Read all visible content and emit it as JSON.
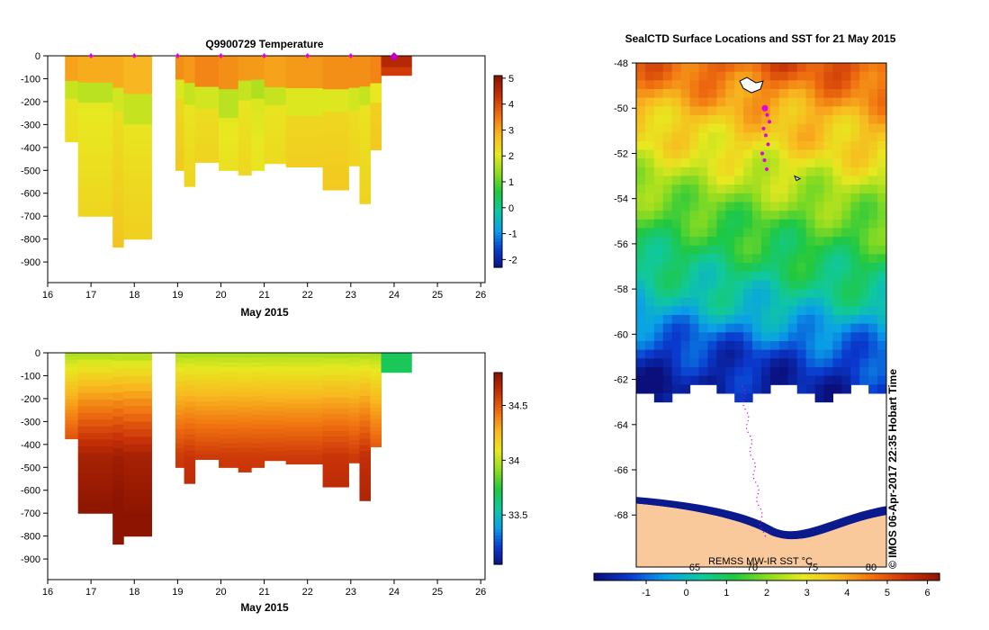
{
  "chart_data": [
    {
      "type": "heatmap",
      "title": "Q9900729  Temperature",
      "xlabel": "May 2015",
      "ylabel": "",
      "xlim": [
        16,
        26.1
      ],
      "ylim": [
        -990,
        0
      ],
      "xticks": [
        "16",
        "17",
        "18",
        "19",
        "20",
        "21",
        "22",
        "23",
        "24",
        "25",
        "26"
      ],
      "yticks": [
        "0",
        "-100",
        "-200",
        "-300",
        "-400",
        "-500",
        "-600",
        "-700",
        "-800",
        "-900"
      ],
      "colorbar": {
        "min": -2.3,
        "max": 5.1,
        "ticks": [
          "5",
          "4",
          "3",
          "2",
          "1",
          "0",
          "-1",
          "-2"
        ],
        "colors": [
          "#0a0f7c",
          "#0a3cd0",
          "#0aa0e8",
          "#10c8a0",
          "#20c840",
          "#90dc20",
          "#e8e820",
          "#f8b820",
          "#f07010",
          "#c83208",
          "#8c1400"
        ]
      },
      "profile_markers": [
        17.0,
        18.0,
        19.0,
        20.0,
        21.0,
        22.0,
        23.0
      ],
      "last_marker": 24.0,
      "profiles": [
        {
          "x0": 16.4,
          "x1": 16.7,
          "depth": 375,
          "surface": 3.1,
          "deep": 2.2,
          "thermo": 130
        },
        {
          "x0": 16.7,
          "x1": 17.5,
          "depth": 700,
          "surface": 3.0,
          "deep": 2.1,
          "thermo": 140
        },
        {
          "x0": 17.5,
          "x1": 17.75,
          "depth": 835,
          "surface": 3.0,
          "deep": 2.3,
          "thermo": 170
        },
        {
          "x0": 17.75,
          "x1": 18.4,
          "depth": 800,
          "surface": 2.9,
          "deep": 2.2,
          "thermo": 210
        },
        {
          "x0": 18.95,
          "x1": 19.15,
          "depth": 500,
          "surface": 3.3,
          "deep": 2.4,
          "thermo": 120
        },
        {
          "x0": 19.15,
          "x1": 19.4,
          "depth": 570,
          "surface": 3.2,
          "deep": 2.2,
          "thermo": 150
        },
        {
          "x0": 19.4,
          "x1": 19.95,
          "depth": 465,
          "surface": 3.4,
          "deep": 2.3,
          "thermo": 150
        },
        {
          "x0": 19.95,
          "x1": 20.4,
          "depth": 500,
          "surface": 3.3,
          "deep": 2.1,
          "thermo": 180
        },
        {
          "x0": 20.4,
          "x1": 20.7,
          "depth": 520,
          "surface": 3.2,
          "deep": 2.2,
          "thermo": 130
        },
        {
          "x0": 20.7,
          "x1": 21.0,
          "depth": 500,
          "surface": 3.2,
          "deep": 2.0,
          "thermo": 120
        },
        {
          "x0": 21.0,
          "x1": 21.5,
          "depth": 470,
          "surface": 3.1,
          "deep": 2.2,
          "thermo": 150
        },
        {
          "x0": 21.5,
          "x1": 22.35,
          "depth": 485,
          "surface": 3.2,
          "deep": 2.4,
          "thermo": 170
        },
        {
          "x0": 22.35,
          "x1": 22.95,
          "depth": 585,
          "surface": 3.3,
          "deep": 2.4,
          "thermo": 160
        },
        {
          "x0": 22.95,
          "x1": 23.2,
          "depth": 480,
          "surface": 3.3,
          "deep": 2.3,
          "thermo": 160
        },
        {
          "x0": 23.2,
          "x1": 23.45,
          "depth": 645,
          "surface": 3.3,
          "deep": 2.2,
          "thermo": 150
        },
        {
          "x0": 23.45,
          "x1": 23.7,
          "depth": 410,
          "surface": 3.4,
          "deep": 2.5,
          "thermo": 140
        },
        {
          "x0": 23.7,
          "x1": 24.4,
          "depth": 85,
          "surface": 4.6,
          "deep": 4.6,
          "thermo": 60
        }
      ]
    },
    {
      "type": "heatmap",
      "title": "",
      "xlabel": "May 2015",
      "ylabel": "",
      "xlim": [
        16,
        26.1
      ],
      "ylim": [
        -990,
        0
      ],
      "xticks": [
        "16",
        "17",
        "18",
        "19",
        "20",
        "21",
        "22",
        "23",
        "24",
        "25",
        "26"
      ],
      "yticks": [
        "0",
        "-100",
        "-200",
        "-300",
        "-400",
        "-500",
        "-600",
        "-700",
        "-800",
        "-900"
      ],
      "colorbar": {
        "min": 33.05,
        "max": 34.8,
        "ticks": [
          "34.5",
          "34",
          "33.5"
        ],
        "colors": [
          "#0a0f7c",
          "#0a3cd0",
          "#0aa0e8",
          "#10c8a0",
          "#20c840",
          "#90dc20",
          "#e8e820",
          "#f8b820",
          "#f07010",
          "#c83208",
          "#8c1400"
        ]
      },
      "profiles": [
        {
          "x0": 16.4,
          "x1": 16.7,
          "depth": 375,
          "surface": 33.95,
          "deep": 34.62
        },
        {
          "x0": 16.7,
          "x1": 17.5,
          "depth": 700,
          "surface": 33.95,
          "deep": 34.72
        },
        {
          "x0": 17.5,
          "x1": 17.75,
          "depth": 835,
          "surface": 33.95,
          "deep": 34.74
        },
        {
          "x0": 17.75,
          "x1": 18.4,
          "depth": 800,
          "surface": 33.95,
          "deep": 34.72
        },
        {
          "x0": 18.95,
          "x1": 19.15,
          "depth": 500,
          "surface": 33.95,
          "deep": 34.6
        },
        {
          "x0": 19.15,
          "x1": 19.4,
          "depth": 570,
          "surface": 33.95,
          "deep": 34.62
        },
        {
          "x0": 19.4,
          "x1": 19.95,
          "depth": 465,
          "surface": 33.95,
          "deep": 34.6
        },
        {
          "x0": 19.95,
          "x1": 20.4,
          "depth": 500,
          "surface": 33.95,
          "deep": 34.6
        },
        {
          "x0": 20.4,
          "x1": 20.7,
          "depth": 520,
          "surface": 33.95,
          "deep": 34.6
        },
        {
          "x0": 20.7,
          "x1": 21.0,
          "depth": 500,
          "surface": 33.95,
          "deep": 34.6
        },
        {
          "x0": 21.0,
          "x1": 21.5,
          "depth": 470,
          "surface": 33.95,
          "deep": 34.6
        },
        {
          "x0": 21.5,
          "x1": 22.35,
          "depth": 485,
          "surface": 33.95,
          "deep": 34.6
        },
        {
          "x0": 22.35,
          "x1": 22.95,
          "depth": 585,
          "surface": 33.95,
          "deep": 34.62
        },
        {
          "x0": 22.95,
          "x1": 23.2,
          "depth": 480,
          "surface": 33.95,
          "deep": 34.6
        },
        {
          "x0": 23.2,
          "x1": 23.45,
          "depth": 645,
          "surface": 33.95,
          "deep": 34.64
        },
        {
          "x0": 23.45,
          "x1": 23.7,
          "depth": 410,
          "surface": 33.95,
          "deep": 34.55
        },
        {
          "x0": 23.7,
          "x1": 24.4,
          "depth": 85,
          "surface": 33.7,
          "deep": 33.7
        }
      ]
    },
    {
      "type": "heatmap",
      "title": "SealCTD Surface Locations and SST for 21 May 2015",
      "xlabel": "",
      "ylabel": "",
      "ylim": [
        -70.3,
        -48
      ],
      "yticks": [
        "-48",
        "-50",
        "-52",
        "-54",
        "-56",
        "-58",
        "-60",
        "-62",
        "-64",
        "-66",
        "-68"
      ],
      "source_label": "REMSS MW-IR SST °C",
      "credit": "© IMOS 06-Apr-2017 22:35 Hobart Time",
      "colorbar": {
        "min": -2.3,
        "max": 6.3,
        "ticks": [
          "-1",
          "0",
          "1",
          "2",
          "3",
          "4",
          "5",
          "6"
        ],
        "secondary_ticks": [
          "65",
          "70",
          "75",
          "80"
        ],
        "colors": [
          "#0a0f7c",
          "#0a3cd0",
          "#0aa0e8",
          "#10c8a0",
          "#20c840",
          "#90dc20",
          "#e8e820",
          "#f8b820",
          "#f07010",
          "#c83208",
          "#8c1400"
        ]
      },
      "sst_bands": [
        {
          "lat": -48.2,
          "value": 4.8
        },
        {
          "lat": -49.3,
          "value": 4.2
        },
        {
          "lat": -50.4,
          "value": 3.6
        },
        {
          "lat": -51.6,
          "value": 3.2
        },
        {
          "lat": -52.8,
          "value": 2.6
        },
        {
          "lat": -54.0,
          "value": 2.0
        },
        {
          "lat": -55.2,
          "value": 1.4
        },
        {
          "lat": -56.4,
          "value": 1.0
        },
        {
          "lat": -57.6,
          "value": 0.5
        },
        {
          "lat": -58.8,
          "value": 0.0
        },
        {
          "lat": -59.9,
          "value": -0.8
        },
        {
          "lat": -61.0,
          "value": -1.5
        },
        {
          "lat": -62.3,
          "value": -1.9
        }
      ],
      "seal_track_lats": [
        -50.0,
        -50.3,
        -50.6,
        -50.9,
        -51.2,
        -51.6,
        -52.0,
        -52.3,
        -52.7
      ]
    }
  ]
}
